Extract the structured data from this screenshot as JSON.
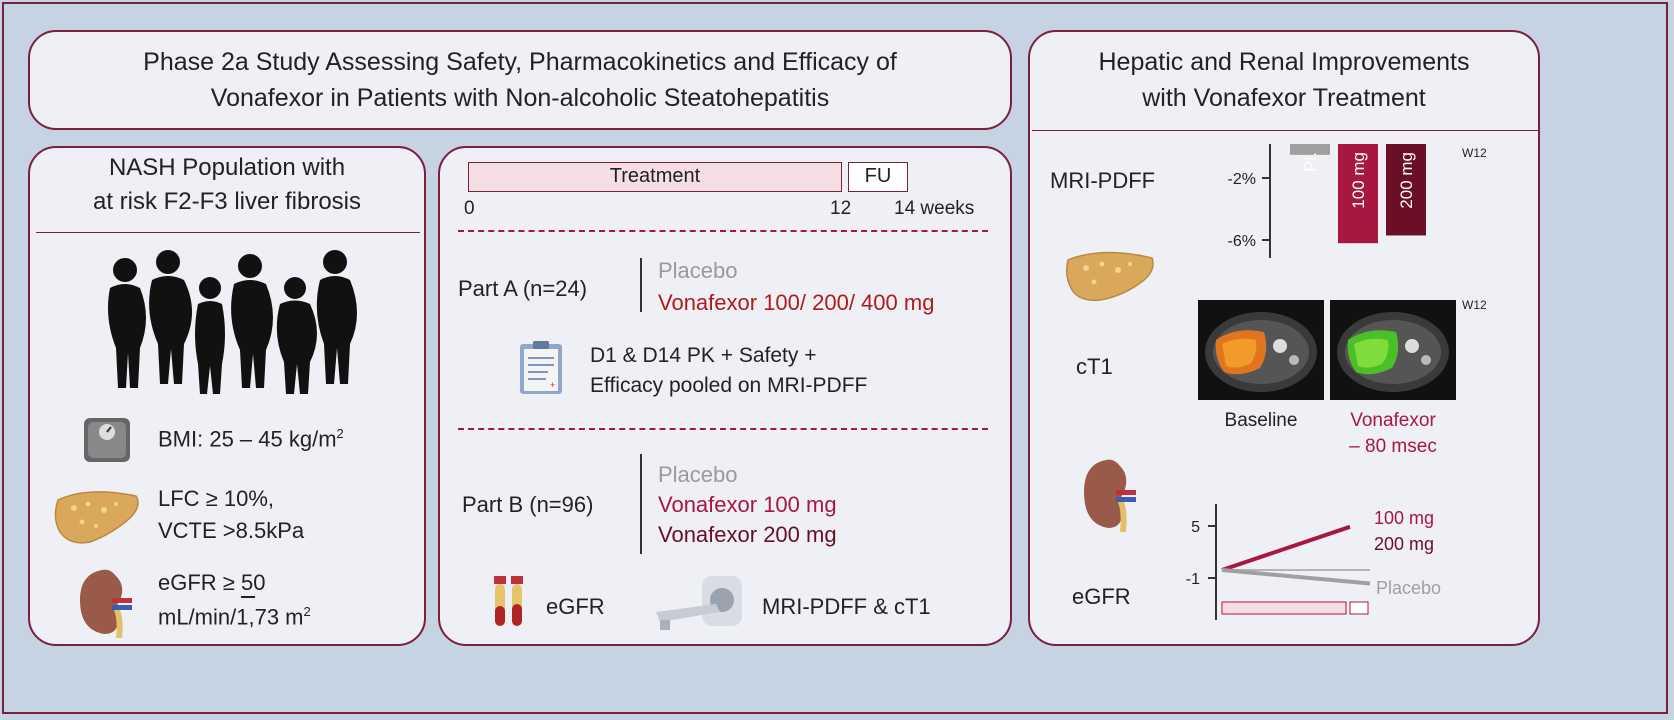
{
  "title": {
    "line1": "Phase 2a Study Assessing Safety, Pharmacokinetics and Efficacy of",
    "line2": "Vonafexor in Patients with Non-alcoholic Steatohepatitis"
  },
  "left": {
    "title_line1": "NASH Population with",
    "title_line2": "at risk F2-F3 liver fibrosis",
    "bmi": "BMI: 25 – 45 kg/m",
    "bmi_sup": "2",
    "lfc_line1": "LFC ≥ 10%,",
    "lfc_line2": "VCTE >8.5kPa",
    "egfr_line1": "eGFR ≥ 50",
    "egfr_line2": "mL/min/1,73 m",
    "egfr_sup": "2"
  },
  "middle": {
    "treatment_label": "Treatment",
    "fu_label": "FU",
    "tick_0": "0",
    "tick_12": "12",
    "tick_14": "14 weeks",
    "part_a": "Part A (n=24)",
    "part_a_placebo": "Placebo",
    "part_a_dose": "Vonafexor 100/ 200/ 400 mg",
    "pk_line1": "D1 & D14 PK + Safety +",
    "pk_line2": "Efficacy pooled on MRI-PDFF",
    "part_b": "Part B (n=96)",
    "part_b_placebo": "Placebo",
    "part_b_dose1": "Vonafexor 100 mg",
    "part_b_dose2": "Vonafexor 200 mg",
    "egfr": "eGFR",
    "mri": "MRI-PDFF & cT1"
  },
  "right": {
    "title_line1": "Hepatic and Renal Improvements",
    "title_line2": "with Vonafexor Treatment",
    "mri_label": "MRI-PDFF",
    "w12_a": "W12",
    "ct1_label": "cT1",
    "w12_b": "W12",
    "baseline": "Baseline",
    "vonafexor_line1": "Vonafexor",
    "vonafexor_line2": "– 80 msec",
    "egfr_label": "eGFR"
  },
  "colors": {
    "border": "#7a1f3d",
    "placebo": "#a0a0a0",
    "dose100": "#a8173f",
    "dose200": "#6a0f25",
    "treatment_fill": "#f5dde4"
  },
  "chart_data": [
    {
      "type": "bar",
      "categories": [
        "Pl.",
        "100 mg",
        "200 mg"
      ],
      "values": [
        -0.7,
        -6.4,
        -5.9
      ],
      "ylabel": "",
      "yticks": [
        "-2%",
        "-6%"
      ],
      "ylim": [
        -7,
        0
      ],
      "series_colors": [
        "#a0a0a0",
        "#a8173f",
        "#6a0f25"
      ]
    },
    {
      "type": "line",
      "x": [
        0,
        12
      ],
      "yticks": [
        "5",
        "-1"
      ],
      "series": [
        {
          "name": "100 mg",
          "values": [
            0,
            4.8
          ],
          "color": "#a8173f"
        },
        {
          "name": "200 mg",
          "values": [
            0,
            0
          ],
          "color": "#a8173f"
        },
        {
          "name": "Placebo",
          "values": [
            0,
            -1.5
          ],
          "color": "#a0a0a0"
        }
      ]
    }
  ]
}
